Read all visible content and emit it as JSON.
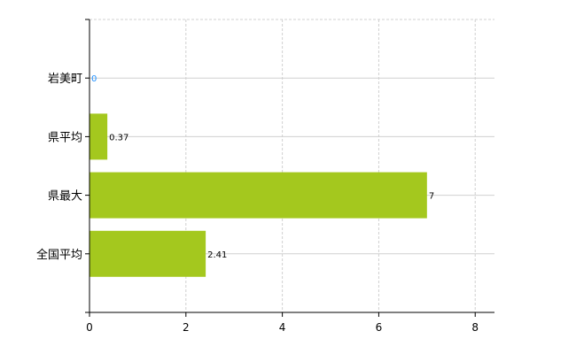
{
  "chart_data": {
    "type": "bar",
    "orientation": "horizontal",
    "categories": [
      "岩美町",
      "県平均",
      "県最大",
      "全国平均"
    ],
    "values": [
      0,
      0.37,
      7,
      2.41
    ],
    "value_labels": [
      "0",
      "0.37",
      "7",
      "2.41"
    ],
    "xlim": [
      0,
      8.4
    ],
    "xticks": [
      "0",
      "2",
      "4",
      "6",
      "8"
    ],
    "grid": true,
    "bar_color": "#a4c81e",
    "zero_label_color": "#1e90ff"
  }
}
